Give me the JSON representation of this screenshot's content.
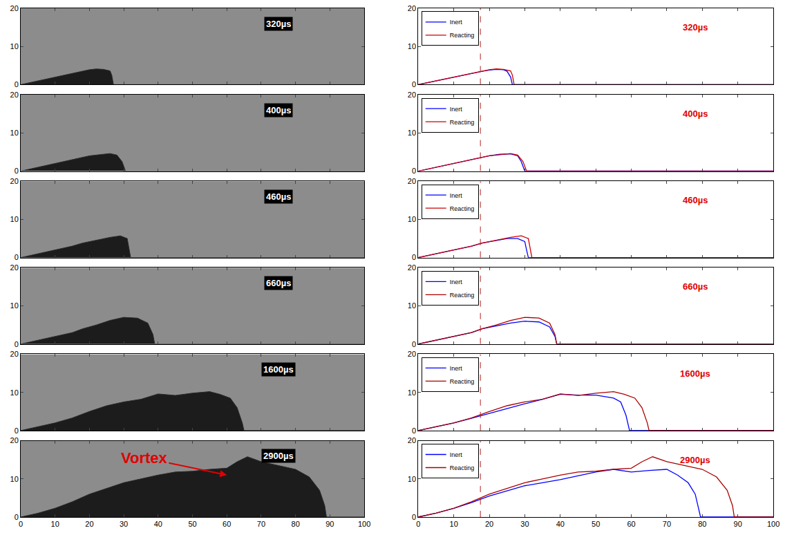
{
  "chart_data": [
    {
      "type": "line",
      "title": "320µs",
      "xlim": [
        0,
        100
      ],
      "ylim": [
        0,
        20
      ],
      "xticks": [
        0,
        10,
        20,
        30,
        40,
        50,
        60,
        70,
        80,
        90,
        100
      ],
      "yticks": [
        0,
        10,
        20
      ],
      "tick_labels": "y",
      "legend": "upper left",
      "reference_x": 17.5,
      "series": [
        {
          "name": "Inert",
          "color": "#0000ff",
          "x": [
            0,
            5,
            10,
            15,
            18,
            20,
            22,
            24,
            25,
            26,
            26.5,
            100
          ],
          "values": [
            0,
            1,
            2,
            3,
            3.5,
            3.8,
            4,
            3.9,
            3.5,
            2,
            0,
            0
          ]
        },
        {
          "name": "Reacting",
          "color": "#cc0000",
          "x": [
            0,
            5,
            10,
            15,
            18,
            20,
            22,
            24,
            26,
            26.5,
            27,
            100
          ],
          "values": [
            0,
            1,
            2,
            3,
            3.6,
            3.9,
            4.1,
            4,
            3.6,
            2.5,
            0,
            0
          ]
        }
      ]
    },
    {
      "type": "line",
      "title": "400µs",
      "xlim": [
        0,
        100
      ],
      "ylim": [
        0,
        20
      ],
      "xticks": [
        0,
        10,
        20,
        30,
        40,
        50,
        60,
        70,
        80,
        90,
        100
      ],
      "yticks": [
        0,
        10,
        20
      ],
      "tick_labels": "y",
      "legend": "upper left",
      "reference_x": 17.5,
      "series": [
        {
          "name": "Inert",
          "color": "#0000ff",
          "x": [
            0,
            5,
            10,
            15,
            18,
            20,
            23,
            26,
            28,
            29,
            30,
            100
          ],
          "values": [
            0,
            1,
            2,
            3,
            3.5,
            4,
            4.4,
            4.5,
            4,
            2.5,
            0,
            0
          ]
        },
        {
          "name": "Reacting",
          "color": "#cc0000",
          "x": [
            0,
            5,
            10,
            15,
            18,
            20,
            23,
            26,
            28,
            29.5,
            30.5,
            100
          ],
          "values": [
            0,
            1,
            2,
            3,
            3.6,
            4,
            4.3,
            4.6,
            4.2,
            2.5,
            0,
            0
          ]
        }
      ]
    },
    {
      "type": "line",
      "title": "460µs",
      "xlim": [
        0,
        100
      ],
      "ylim": [
        0,
        20
      ],
      "xticks": [
        0,
        10,
        20,
        30,
        40,
        50,
        60,
        70,
        80,
        90,
        100
      ],
      "yticks": [
        0,
        10,
        20
      ],
      "tick_labels": "y",
      "legend": "upper left",
      "reference_x": 17.5,
      "series": [
        {
          "name": "Inert",
          "color": "#0000ff",
          "x": [
            0,
            5,
            10,
            15,
            18,
            22,
            25,
            28,
            30,
            30.5,
            31,
            100
          ],
          "values": [
            0,
            1,
            2,
            3,
            3.8,
            4.5,
            5,
            5,
            4.2,
            2,
            0,
            0
          ]
        },
        {
          "name": "Reacting",
          "color": "#cc0000",
          "x": [
            0,
            5,
            10,
            15,
            18,
            22,
            26,
            29,
            31,
            31.5,
            32,
            100
          ],
          "values": [
            0,
            1,
            2,
            3,
            3.8,
            4.6,
            5.3,
            5.7,
            5,
            2.5,
            0,
            0
          ]
        }
      ]
    },
    {
      "type": "line",
      "title": "660µs",
      "xlim": [
        0,
        100
      ],
      "ylim": [
        0,
        20
      ],
      "xticks": [
        0,
        10,
        20,
        30,
        40,
        50,
        60,
        70,
        80,
        90,
        100
      ],
      "yticks": [
        0,
        10,
        20
      ],
      "tick_labels": "y",
      "legend": "upper left",
      "reference_x": 17.5,
      "series": [
        {
          "name": "Inert",
          "color": "#0000ff",
          "x": [
            0,
            5,
            10,
            15,
            18,
            22,
            26,
            30,
            34,
            37,
            38.5,
            39,
            100
          ],
          "values": [
            0,
            1,
            2,
            3,
            4,
            4.8,
            5.5,
            6,
            5.8,
            4.5,
            2,
            0,
            0
          ]
        },
        {
          "name": "Reacting",
          "color": "#aa0000",
          "x": [
            0,
            5,
            10,
            15,
            18,
            22,
            26,
            30,
            34,
            37,
            38.5,
            39,
            100
          ],
          "values": [
            0,
            1,
            2,
            3,
            4,
            5,
            6.2,
            7,
            6.8,
            5.5,
            2.5,
            0,
            0
          ]
        }
      ]
    },
    {
      "type": "line",
      "title": "1600µs",
      "xlim": [
        0,
        100
      ],
      "ylim": [
        0,
        20
      ],
      "xticks": [
        0,
        10,
        20,
        30,
        40,
        50,
        60,
        70,
        80,
        90,
        100
      ],
      "yticks": [
        0,
        10,
        20
      ],
      "tick_labels": "y",
      "legend": "upper left",
      "reference_x": 17.5,
      "series": [
        {
          "name": "Inert",
          "color": "#0000ff",
          "x": [
            0,
            5,
            10,
            15,
            20,
            25,
            30,
            35,
            40,
            45,
            50,
            55,
            57,
            58.5,
            59.5,
            100
          ],
          "values": [
            0,
            1,
            2,
            3.2,
            4.5,
            5.8,
            7,
            8.2,
            9.5,
            9.3,
            9.3,
            8.5,
            7.5,
            4,
            0,
            0
          ]
        },
        {
          "name": "Reacting",
          "color": "#aa0000",
          "x": [
            0,
            5,
            10,
            15,
            20,
            25,
            30,
            35,
            40,
            45,
            50,
            55,
            58,
            61,
            63,
            64.5,
            65,
            100
          ],
          "values": [
            0,
            1,
            2,
            3.3,
            5,
            6.5,
            7.5,
            8.2,
            9.6,
            9.2,
            9.8,
            10.2,
            9.5,
            8.5,
            6,
            2,
            0,
            0
          ]
        }
      ]
    },
    {
      "type": "line",
      "title": "2900µs",
      "xlim": [
        0,
        100
      ],
      "ylim": [
        0,
        20
      ],
      "xticks": [
        0,
        10,
        20,
        30,
        40,
        50,
        60,
        70,
        80,
        90,
        100
      ],
      "yticks": [
        0,
        10,
        20
      ],
      "legend": "upper left",
      "reference_x": 17.5,
      "series": [
        {
          "name": "Inert",
          "color": "#0000ff",
          "x": [
            0,
            5,
            10,
            15,
            20,
            25,
            30,
            35,
            40,
            45,
            50,
            55,
            60,
            65,
            70,
            73,
            76,
            78,
            79.5,
            100
          ],
          "values": [
            0,
            1,
            2.3,
            3.8,
            5.5,
            6.8,
            8.2,
            9,
            9.8,
            10.8,
            11.8,
            12.5,
            11.8,
            12.2,
            12.5,
            11,
            9,
            6,
            0,
            0
          ]
        },
        {
          "name": "Reacting",
          "color": "#aa0000",
          "x": [
            0,
            5,
            10,
            15,
            20,
            25,
            30,
            35,
            40,
            45,
            50,
            55,
            60,
            63,
            66,
            70,
            75,
            80,
            84,
            87,
            88.5,
            89,
            100
          ],
          "values": [
            0,
            1,
            2.3,
            4,
            6,
            7.5,
            9,
            10,
            11,
            11.8,
            12,
            12.5,
            12.8,
            14.5,
            15.8,
            14.5,
            13.5,
            12.5,
            10.5,
            7,
            3,
            0,
            0
          ]
        }
      ]
    }
  ],
  "images": {
    "xlim": [
      0,
      100
    ],
    "ylim": [
      0,
      20
    ],
    "xticks": [
      0,
      10,
      20,
      30,
      40,
      50,
      60,
      70,
      80,
      90,
      100
    ],
    "yticks": [
      0,
      10,
      20
    ],
    "panels": [
      {
        "label": "320µs",
        "tick_labels": "y"
      },
      {
        "label": "400µs",
        "tick_labels": "y"
      },
      {
        "label": "460µs",
        "tick_labels": "y"
      },
      {
        "label": "660µs",
        "tick_labels": "y"
      },
      {
        "label": "1600µs",
        "tick_labels": "y"
      },
      {
        "label": "2900µs",
        "annotation": {
          "text": "Vortex",
          "x": 36,
          "y": 15.5,
          "arrow_x": 60,
          "arrow_y": 11
        }
      }
    ]
  }
}
